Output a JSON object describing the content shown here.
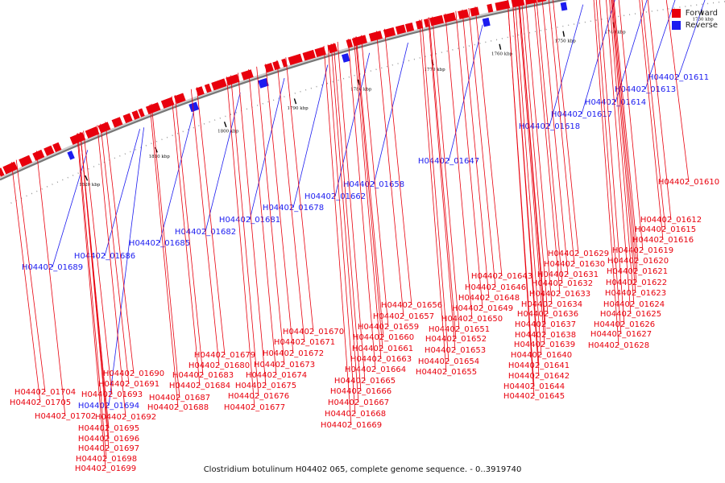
{
  "caption": "Clostridium botulinum H04402 065, complete genome sequence. - 0..3919740",
  "colors": {
    "forward": "#e8000d",
    "reverse": "#1c1cf0",
    "backbone": "#777777"
  },
  "legend": [
    {
      "label": "Forward",
      "strand": "forward"
    },
    {
      "label": "Reverse",
      "strand": "reverse"
    }
  ],
  "ticks": [
    "1730 kbp",
    "1740 kbp",
    "1750 kbp",
    "1760 kbp",
    "1770 kbp",
    "1780 kbp",
    "1790 kbp",
    "1800 kbp",
    "1810 kbp",
    "1820 kbp"
  ],
  "reverse_labels": [
    "H04402_01611",
    "H04402_01613",
    "H04402_01614",
    "H04402_01617",
    "H04402_01618",
    "H04402_01647",
    "H04402_01658",
    "H04402_01662",
    "H04402_01678",
    "H04402_01681",
    "H04402_01682",
    "H04402_01685",
    "H04402_01686",
    "H04402_01689",
    "H04402_01694"
  ],
  "forward_labels": [
    "H04402_01610",
    "H04402_01612",
    "H04402_01615",
    "H04402_01616",
    "H04402_01619",
    "H04402_01620",
    "H04402_01621",
    "H04402_01622",
    "H04402_01623",
    "H04402_01624",
    "H04402_01625",
    "H04402_01626",
    "H04402_01627",
    "H04402_01628",
    "H04402_01629",
    "H04402_01630",
    "H04402_01631",
    "H04402_01632",
    "H04402_01633",
    "H04402_01634",
    "H04402_01636",
    "H04402_01637",
    "H04402_01638",
    "H04402_01639",
    "H04402_01640",
    "H04402_01641",
    "H04402_01642",
    "H04402_01644",
    "H04402_01645",
    "H04402_01643",
    "H04402_01646",
    "H04402_01648",
    "H04402_01649",
    "H04402_01650",
    "H04402_01651",
    "H04402_01652",
    "H04402_01653",
    "H04402_01654",
    "H04402_01655",
    "H04402_01656",
    "H04402_01657",
    "H04402_01659",
    "H04402_01660",
    "H04402_01661",
    "H04402_01663",
    "H04402_01664",
    "H04402_01665",
    "H04402_01666",
    "H04402_01667",
    "H04402_01668",
    "H04402_01669",
    "H04402_01670",
    "H04402_01671",
    "H04402_01672",
    "H04402_01673",
    "H04402_01674",
    "H04402_01675",
    "H04402_01676",
    "H04402_01677",
    "H04402_01679",
    "H04402_01680",
    "H04402_01683",
    "H04402_01684",
    "H04402_01687",
    "H04402_01688",
    "H04402_01690",
    "H04402_01691",
    "H04402_01693",
    "H04402_01692",
    "H04402_01695",
    "H04402_01696",
    "H04402_01697",
    "H04402_01698",
    "H04402_01699",
    "H04402_01702",
    "H04402_01704",
    "H04402_01705"
  ]
}
